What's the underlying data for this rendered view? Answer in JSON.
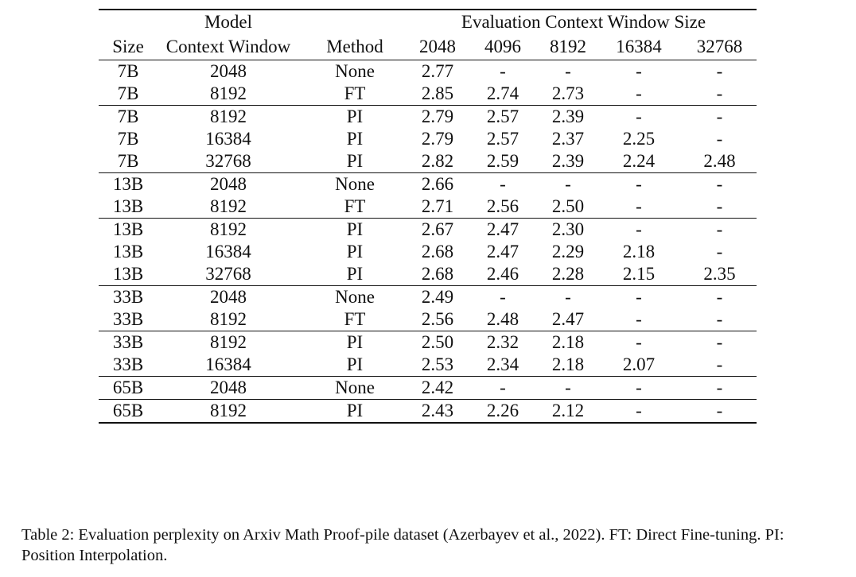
{
  "header": {
    "model_label": "Model",
    "eval_label": "Evaluation Context Window Size",
    "columns": [
      "Size",
      "Context Window",
      "Method",
      "2048",
      "4096",
      "8192",
      "16384",
      "32768"
    ]
  },
  "groups": [
    [
      [
        "7B",
        "2048",
        "None",
        "2.77",
        "-",
        "-",
        "-",
        "-"
      ],
      [
        "7B",
        "8192",
        "FT",
        "2.85",
        "2.74",
        "2.73",
        "-",
        "-"
      ]
    ],
    [
      [
        "7B",
        "8192",
        "PI",
        "2.79",
        "2.57",
        "2.39",
        "-",
        "-"
      ],
      [
        "7B",
        "16384",
        "PI",
        "2.79",
        "2.57",
        "2.37",
        "2.25",
        "-"
      ],
      [
        "7B",
        "32768",
        "PI",
        "2.82",
        "2.59",
        "2.39",
        "2.24",
        "2.48"
      ]
    ],
    [
      [
        "13B",
        "2048",
        "None",
        "2.66",
        "-",
        "-",
        "-",
        "-"
      ],
      [
        "13B",
        "8192",
        "FT",
        "2.71",
        "2.56",
        "2.50",
        "-",
        "-"
      ]
    ],
    [
      [
        "13B",
        "8192",
        "PI",
        "2.67",
        "2.47",
        "2.30",
        "-",
        "-"
      ],
      [
        "13B",
        "16384",
        "PI",
        "2.68",
        "2.47",
        "2.29",
        "2.18",
        "-"
      ],
      [
        "13B",
        "32768",
        "PI",
        "2.68",
        "2.46",
        "2.28",
        "2.15",
        "2.35"
      ]
    ],
    [
      [
        "33B",
        "2048",
        "None",
        "2.49",
        "-",
        "-",
        "-",
        "-"
      ],
      [
        "33B",
        "8192",
        "FT",
        "2.56",
        "2.48",
        "2.47",
        "-",
        "-"
      ]
    ],
    [
      [
        "33B",
        "8192",
        "PI",
        "2.50",
        "2.32",
        "2.18",
        "-",
        "-"
      ],
      [
        "33B",
        "16384",
        "PI",
        "2.53",
        "2.34",
        "2.18",
        "2.07",
        "-"
      ]
    ],
    [
      [
        "65B",
        "2048",
        "None",
        "2.42",
        "-",
        "-",
        "-",
        "-"
      ]
    ],
    [
      [
        "65B",
        "8192",
        "PI",
        "2.43",
        "2.26",
        "2.12",
        "-",
        "-"
      ]
    ]
  ],
  "caption": "Table 2: Evaluation perplexity on Arxiv Math Proof-pile dataset (Azerbayev et al., 2022). FT: Direct Fine-tuning. PI: Position Interpolation."
}
